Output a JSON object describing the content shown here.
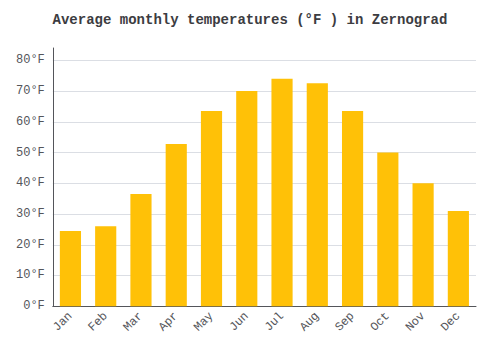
{
  "chart_data": {
    "type": "bar",
    "title": "Average monthly temperatures (°F ) in Zernograd",
    "categories": [
      "Jan",
      "Feb",
      "Mar",
      "Apr",
      "May",
      "Jun",
      "Jul",
      "Aug",
      "Sep",
      "Oct",
      "Nov",
      "Dec"
    ],
    "values": [
      24.5,
      26.0,
      36.5,
      52.8,
      63.5,
      70.0,
      74.0,
      72.5,
      63.5,
      50.0,
      40.0,
      31.0
    ],
    "color": "#FFC107",
    "ylim": [
      0,
      84
    ],
    "yticks": [
      {
        "value": 0,
        "label": "0°F"
      },
      {
        "value": 10,
        "label": "10°F"
      },
      {
        "value": 20,
        "label": "20°F"
      },
      {
        "value": 30,
        "label": "30°F"
      },
      {
        "value": 40,
        "label": "40°F"
      },
      {
        "value": 50,
        "label": "50°F"
      },
      {
        "value": 60,
        "label": "60°F"
      },
      {
        "value": 70,
        "label": "70°F"
      },
      {
        "value": 80,
        "label": "80°F"
      }
    ],
    "grid": true
  }
}
